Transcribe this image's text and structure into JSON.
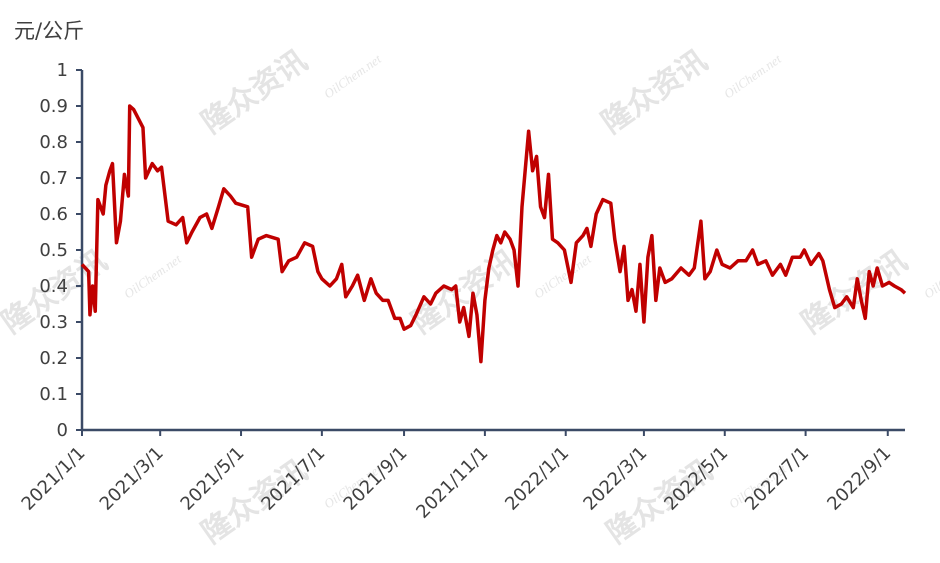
{
  "chart_data": {
    "type": "line",
    "y_label": "元/公斤",
    "watermarks": [
      "隆众资讯",
      "OilChem.net"
    ],
    "color": "#c00000",
    "x": [
      "2021/1/1",
      "2021/1/6",
      "2021/1/7",
      "2021/1/9",
      "2021/1/11",
      "2021/1/13",
      "2021/1/17",
      "2021/1/19",
      "2021/1/22",
      "2021/1/24",
      "2021/1/27",
      "2021/1/30",
      "2021/2/2",
      "2021/2/5",
      "2021/2/6",
      "2021/2/9",
      "2021/2/16",
      "2021/2/18",
      "2021/2/23",
      "2021/2/27",
      "2021/3/2",
      "2021/3/7",
      "2021/3/13",
      "2021/3/18",
      "2021/3/21",
      "2021/3/25",
      "2021/3/31",
      "2021/4/5",
      "2021/4/9",
      "2021/4/14",
      "2021/4/18",
      "2021/4/23",
      "2021/4/27",
      "2021/5/6",
      "2021/5/9",
      "2021/5/14",
      "2021/5/20",
      "2021/5/29",
      "2021/6/1",
      "2021/6/6",
      "2021/6/12",
      "2021/6/18",
      "2021/6/24",
      "2021/6/28",
      "2021/7/1",
      "2021/7/7",
      "2021/7/12",
      "2021/7/16",
      "2021/7/19",
      "2021/7/24",
      "2021/7/28",
      "2021/8/2",
      "2021/8/7",
      "2021/8/11",
      "2021/8/16",
      "2021/8/20",
      "2021/8/25",
      "2021/8/29",
      "2021/9/1",
      "2021/9/6",
      "2021/9/10",
      "2021/9/16",
      "2021/9/21",
      "2021/9/25",
      "2021/10/1",
      "2021/10/7",
      "2021/10/10",
      "2021/10/13",
      "2021/10/16",
      "2021/10/20",
      "2021/10/23",
      "2021/10/26",
      "2021/10/29",
      "2021/11/1",
      "2021/11/4",
      "2021/11/7",
      "2021/11/10",
      "2021/11/13",
      "2021/11/16",
      "2021/11/20",
      "2021/11/23",
      "2021/11/26",
      "2021/11/29",
      "2021/12/4",
      "2021/12/7",
      "2021/12/10",
      "2021/12/13",
      "2021/12/16",
      "2021/12/19",
      "2021/12/22",
      "2021/12/26",
      "2021/12/31",
      "2022/1/5",
      "2022/1/9",
      "2022/1/14",
      "2022/1/17",
      "2022/1/20",
      "2022/1/24",
      "2022/1/29",
      "2022/2/4",
      "2022/2/7",
      "2022/2/11",
      "2022/2/14",
      "2022/2/17",
      "2022/2/20",
      "2022/2/23",
      "2022/2/26",
      "2022/3/1",
      "2022/3/4",
      "2022/3/7",
      "2022/3/10",
      "2022/3/13",
      "2022/3/17",
      "2022/3/22",
      "2022/3/29",
      "2022/4/4",
      "2022/4/8",
      "2022/4/13",
      "2022/4/16",
      "2022/4/20",
      "2022/4/25",
      "2022/4/29",
      "2022/5/5",
      "2022/5/11",
      "2022/5/17",
      "2022/5/22",
      "2022/5/26",
      "2022/6/1",
      "2022/6/6",
      "2022/6/12",
      "2022/6/16",
      "2022/6/21",
      "2022/6/27",
      "2022/6/30",
      "2022/7/5",
      "2022/7/11",
      "2022/7/14",
      "2022/7/19",
      "2022/7/23",
      "2022/7/28",
      "2022/8/1",
      "2022/8/6",
      "2022/8/9",
      "2022/8/12",
      "2022/8/15",
      "2022/8/18",
      "2022/8/21",
      "2022/8/24",
      "2022/8/28",
      "2022/9/2",
      "2022/9/6",
      "2022/9/11",
      "2022/9/14"
    ],
    "values": [
      0.46,
      0.44,
      0.32,
      0.4,
      0.33,
      0.64,
      0.6,
      0.68,
      0.72,
      0.74,
      0.52,
      0.58,
      0.71,
      0.65,
      0.9,
      0.89,
      0.84,
      0.7,
      0.74,
      0.72,
      0.73,
      0.58,
      0.57,
      0.59,
      0.52,
      0.55,
      0.59,
      0.6,
      0.56,
      0.62,
      0.67,
      0.65,
      0.63,
      0.62,
      0.48,
      0.53,
      0.54,
      0.53,
      0.44,
      0.47,
      0.48,
      0.52,
      0.51,
      0.44,
      0.42,
      0.4,
      0.42,
      0.46,
      0.37,
      0.4,
      0.43,
      0.36,
      0.42,
      0.38,
      0.36,
      0.36,
      0.31,
      0.31,
      0.28,
      0.29,
      0.32,
      0.37,
      0.35,
      0.38,
      0.4,
      0.39,
      0.4,
      0.3,
      0.34,
      0.26,
      0.38,
      0.32,
      0.19,
      0.36,
      0.45,
      0.5,
      0.54,
      0.52,
      0.55,
      0.53,
      0.5,
      0.4,
      0.62,
      0.83,
      0.72,
      0.76,
      0.62,
      0.59,
      0.71,
      0.53,
      0.52,
      0.5,
      0.41,
      0.52,
      0.54,
      0.56,
      0.51,
      0.6,
      0.64,
      0.63,
      0.53,
      0.44,
      0.51,
      0.36,
      0.39,
      0.33,
      0.46,
      0.3,
      0.48,
      0.54,
      0.36,
      0.45,
      0.41,
      0.42,
      0.45,
      0.43,
      0.45,
      0.58,
      0.42,
      0.44,
      0.5,
      0.46,
      0.45,
      0.47,
      0.47,
      0.5,
      0.46,
      0.47,
      0.43,
      0.46,
      0.43,
      0.48,
      0.48,
      0.5,
      0.46,
      0.49,
      0.47,
      0.39,
      0.34,
      0.35,
      0.37,
      0.34,
      0.42,
      0.36,
      0.31,
      0.44,
      0.4,
      0.45,
      0.4,
      0.41,
      0.4,
      0.39,
      0.38
    ],
    "xlim": [
      "2021/1/1",
      "2022/9/14"
    ],
    "xticks": [
      "2021/1/1",
      "2021/3/1",
      "2021/5/1",
      "2021/7/1",
      "2021/9/1",
      "2021/11/1",
      "2022/1/1",
      "2022/3/1",
      "2022/5/1",
      "2022/7/1",
      "2022/9/1"
    ],
    "ylim": [
      0,
      1
    ],
    "yticks": [
      0,
      0.1,
      0.2,
      0.3,
      0.4,
      0.5,
      0.6,
      0.7,
      0.8,
      0.9,
      1
    ]
  }
}
